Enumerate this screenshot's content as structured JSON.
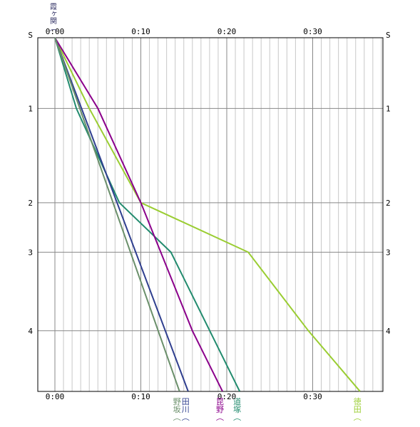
{
  "chart_data": {
    "type": "line",
    "x_unit": "minutes",
    "xlim": [
      0,
      38
    ],
    "y_range": [
      "S",
      "5"
    ],
    "grid": true,
    "grid_minor_minutes": 1,
    "grid_major_minutes": 10,
    "top_labels": {
      "origin_station_text": "霞ヶ関",
      "origin_paren": "（"
    },
    "x_ticks": [
      {
        "minute": 0,
        "label": "0:00"
      },
      {
        "minute": 10,
        "label": "0:10"
      },
      {
        "minute": 20,
        "label": "0:20"
      },
      {
        "minute": 30,
        "label": "0:30"
      }
    ],
    "stations": [
      {
        "label": "S",
        "pos": 0
      },
      {
        "label": "1",
        "pos": 0.9
      },
      {
        "label": "2",
        "pos": 2.1
      },
      {
        "label": "3",
        "pos": 2.73
      },
      {
        "label": "4",
        "pos": 3.73
      }
    ],
    "y_bottom_pos": 4.5,
    "series": [
      {
        "color": "#9acd32",
        "dest": "徳田",
        "paren": "（",
        "points": [
          [
            0,
            0
          ],
          [
            4,
            0.9
          ],
          [
            10,
            2.1
          ],
          [
            22.5,
            2.73
          ],
          [
            29.5,
            3.73
          ],
          [
            35.5,
            4.5
          ]
        ]
      },
      {
        "color": "#228b6e",
        "dest": "道塚",
        "paren": "（",
        "points": [
          [
            0,
            0
          ],
          [
            2.5,
            0.9
          ],
          [
            7.5,
            2.1
          ],
          [
            13.5,
            2.73
          ],
          [
            21.5,
            4.5
          ]
        ]
      },
      {
        "color": "#8b008b",
        "dest": "昆野",
        "paren": "（",
        "points": [
          [
            0,
            0
          ],
          [
            5,
            0.9
          ],
          [
            10,
            2.1
          ],
          [
            16,
            3.73
          ],
          [
            19.5,
            4.5
          ]
        ]
      },
      {
        "color": "#2f3f8f",
        "dest": "田川",
        "paren": "（",
        "points": [
          [
            0,
            0
          ],
          [
            15.5,
            4.5
          ]
        ]
      },
      {
        "color": "#6a8f6a",
        "dest": "野坂",
        "paren": "（",
        "points": [
          [
            0,
            0
          ],
          [
            14.5,
            4.5
          ]
        ]
      }
    ]
  }
}
